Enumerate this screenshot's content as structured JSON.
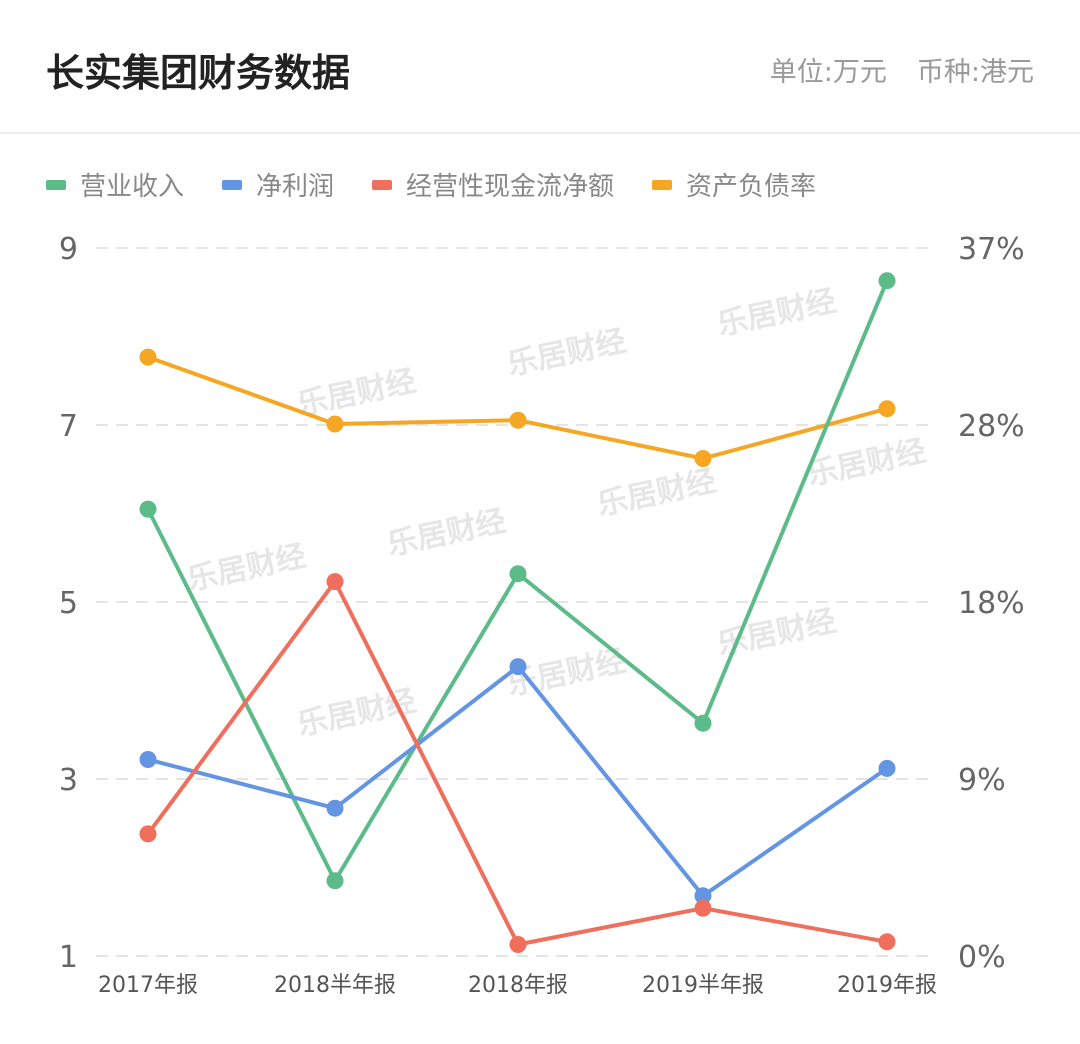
{
  "header": {
    "title": "长实集团财务数据",
    "unit": "单位:万元",
    "currency": "币种:港元"
  },
  "watermark": "乐居财经",
  "chart_data": {
    "type": "line",
    "categories": [
      "2017年报",
      "2018半年报",
      "2018年报",
      "2019半年报",
      "2019年报"
    ],
    "y_left": {
      "ticks": [
        "9",
        "7",
        "5",
        "3",
        "1"
      ],
      "range": [
        1,
        9
      ]
    },
    "y_right": {
      "ticks": [
        "37%",
        "28%",
        "18%",
        "9%",
        "0%"
      ],
      "range": [
        0,
        37
      ]
    },
    "grid": "dashed horizontal",
    "legend_position": "top-left",
    "series": [
      {
        "name": "营业收入",
        "color": "#5dbb8a",
        "axis": "left",
        "values": [
          6.05,
          1.85,
          5.32,
          3.63,
          8.63
        ]
      },
      {
        "name": "净利润",
        "color": "#6495e3",
        "axis": "left",
        "values": [
          3.22,
          2.67,
          4.27,
          1.68,
          3.12
        ]
      },
      {
        "name": "经营性现金流净额",
        "color": "#f06e5c",
        "axis": "left",
        "values": [
          2.38,
          5.23,
          1.13,
          1.54,
          1.16
        ]
      },
      {
        "name": "资产负债率",
        "color": "#f5a623",
        "axis": "right",
        "values": [
          31.3,
          27.8,
          28.0,
          26.0,
          28.6
        ]
      }
    ]
  }
}
